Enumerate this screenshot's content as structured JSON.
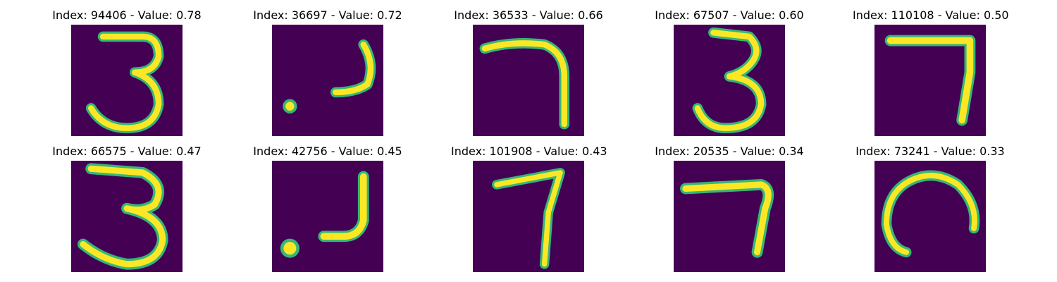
{
  "panels": [
    {
      "title": "Index: 94406 - Value: 0.78",
      "digit": "3",
      "icon": "digit-3"
    },
    {
      "title": "Index: 36697 - Value: 0.72",
      "digit": "dot-stroke",
      "icon": "dot-stroke"
    },
    {
      "title": "Index: 36533 - Value: 0.66",
      "digit": "7",
      "icon": "digit-7"
    },
    {
      "title": "Index: 67507 - Value: 0.60",
      "digit": "3",
      "icon": "digit-3"
    },
    {
      "title": "Index: 110108 - Value: 0.50",
      "digit": "7",
      "icon": "digit-7"
    },
    {
      "title": "Index: 66575 - Value: 0.47",
      "digit": "3",
      "icon": "digit-3"
    },
    {
      "title": "Index: 42756 - Value: 0.45",
      "digit": "dot-stroke",
      "icon": "dot-stroke"
    },
    {
      "title": "Index: 101908 - Value: 0.43",
      "digit": "7",
      "icon": "digit-7"
    },
    {
      "title": "Index: 20535 - Value: 0.34",
      "digit": "7",
      "icon": "digit-7"
    },
    {
      "title": "Index: 73241 - Value: 0.33",
      "digit": "0",
      "icon": "digit-0"
    }
  ],
  "colors": {
    "background": "#440154",
    "stroke_main": "#fde725",
    "stroke_edge": "#35b779"
  }
}
